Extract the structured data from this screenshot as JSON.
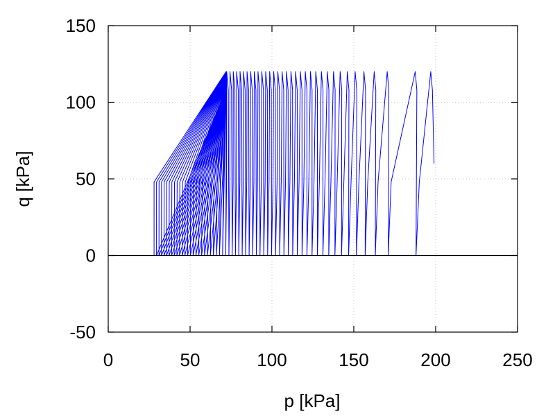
{
  "chart_data": {
    "type": "line",
    "title": "",
    "xlabel": "p [kPa]",
    "ylabel": "q [kPa]",
    "xlim": [
      0,
      250
    ],
    "ylim": [
      -50,
      150
    ],
    "xticks": [
      "0",
      "50",
      "100",
      "150",
      "200",
      "250"
    ],
    "yticks": [
      "-50",
      "0",
      "50",
      "100",
      "150"
    ],
    "grid": true,
    "zero_line": true,
    "legend": "none",
    "series": [
      {
        "color": "#0000ff",
        "cycles": 60,
        "start": [
          199,
          60
        ],
        "peak_q": 120,
        "min_q": 0,
        "first_unload_p": 188,
        "final_p": 28,
        "peak_p_end": 72,
        "x": [
          199,
          198,
          195,
          190,
          188,
          187,
          188,
          172,
          170,
          178,
          164,
          162,
          167,
          154,
          152,
          80,
          72,
          60,
          45,
          33,
          28,
          28,
          32,
          38,
          45
        ],
        "y": [
          60,
          110,
          120,
          110,
          0,
          60,
          120,
          0,
          80,
          120,
          0,
          60,
          120,
          0,
          60,
          120,
          120,
          105,
          80,
          40,
          10,
          0,
          30,
          60,
          80
        ]
      }
    ]
  },
  "colors": {
    "series": "#0000ff",
    "grid": "#c8c8c8",
    "axes": "#000000"
  }
}
